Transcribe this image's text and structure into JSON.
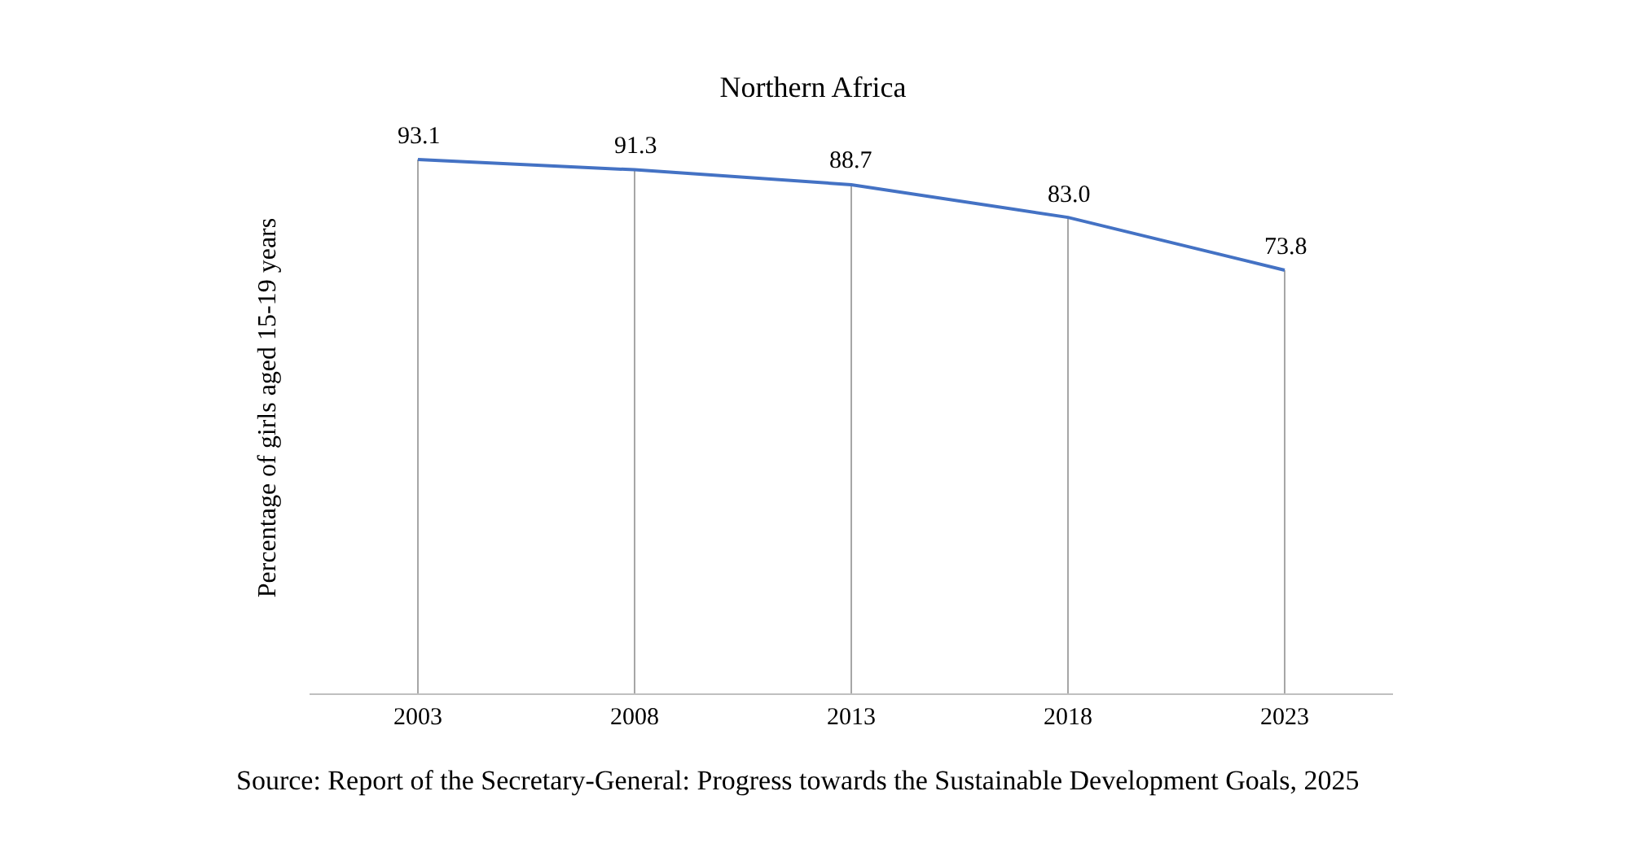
{
  "chart_data": {
    "type": "line",
    "title": "Northern Africa",
    "ylabel": "Percentage of girls aged 15-19 years",
    "categories": [
      "2003",
      "2008",
      "2013",
      "2018",
      "2023"
    ],
    "series": [
      {
        "color": "#4472c4",
        "values": [
          93.1,
          91.3,
          88.7,
          83.0,
          73.8
        ],
        "value_labels": [
          "93.1",
          "91.3",
          "88.7",
          "83.0",
          "73.8"
        ]
      }
    ],
    "tick_labels": "x",
    "grid": "x",
    "marker": "none",
    "annotations": [
      "Source: Report of the Secretary-General: Progress towards the Sustainable Development Goals, 2025"
    ]
  }
}
